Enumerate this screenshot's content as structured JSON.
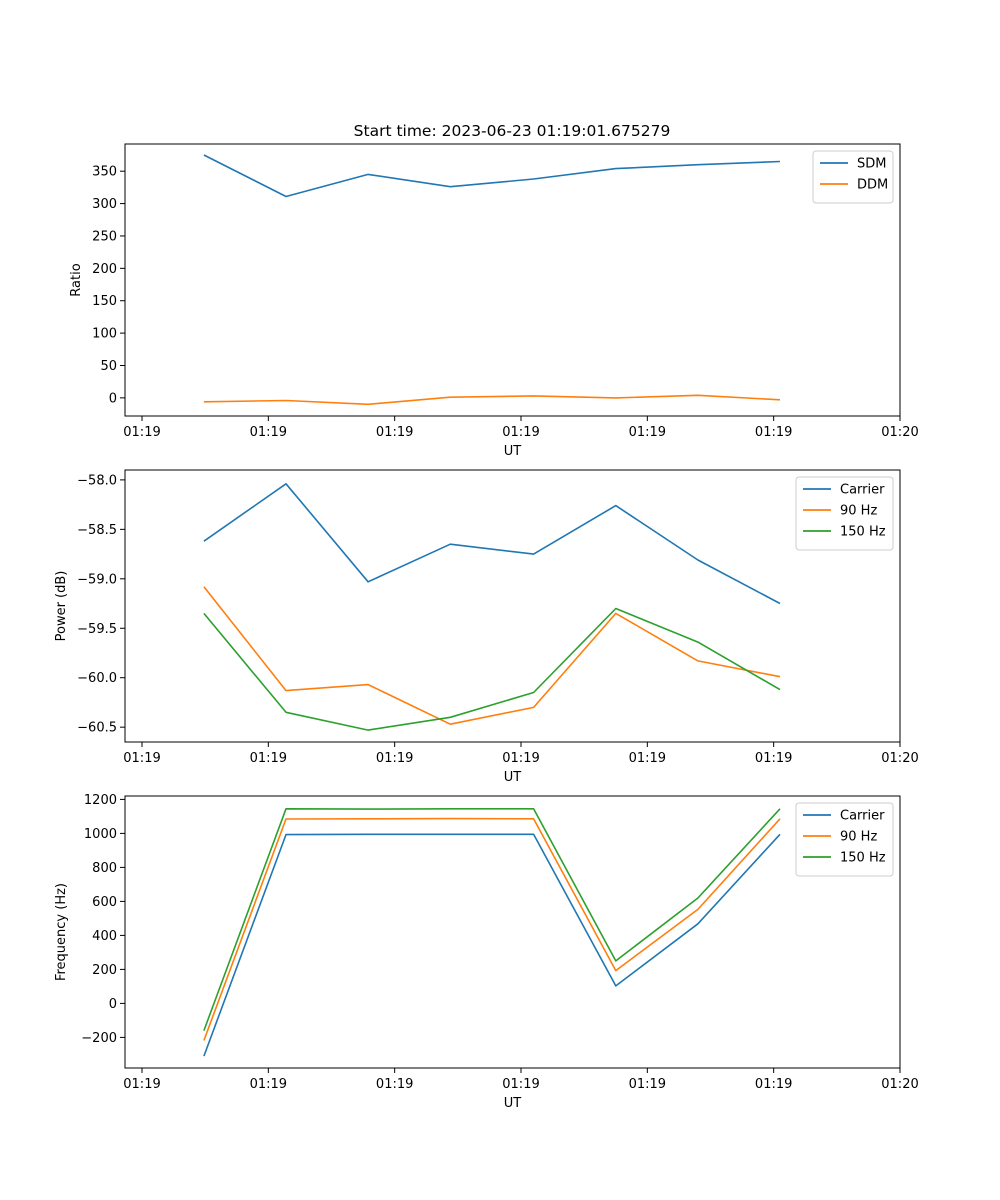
{
  "figure": {
    "title": "Start time: 2023-06-23 01:19:01.675279"
  },
  "chart_data": [
    {
      "type": "line",
      "xlabel": "UT",
      "ylabel": "Ratio",
      "xlim": [
        0,
        6
      ],
      "ylim": [
        -28,
        392
      ],
      "x_ticks": [
        {
          "value": 0,
          "label": "01:19"
        },
        {
          "value": 1,
          "label": "01:19"
        },
        {
          "value": 2,
          "label": "01:19"
        },
        {
          "value": 3,
          "label": "01:19"
        },
        {
          "value": 4,
          "label": "01:19"
        },
        {
          "value": 5,
          "label": "01:19"
        },
        {
          "value": 6,
          "label": "01:20"
        }
      ],
      "y_ticks": [
        0,
        50,
        100,
        150,
        200,
        250,
        300,
        350
      ],
      "x": [
        0.49,
        1.14,
        1.79,
        2.44,
        3.1,
        3.75,
        4.4,
        5.05
      ],
      "series": [
        {
          "name": "SDM",
          "color": "#1f77b4",
          "values": [
            375,
            311,
            345,
            326,
            338,
            354,
            360,
            365
          ]
        },
        {
          "name": "DDM",
          "color": "#ff7f0e",
          "values": [
            -6,
            -4,
            -10,
            1,
            3,
            0,
            4,
            -3
          ]
        }
      ],
      "legend": "upper right",
      "grid": false
    },
    {
      "type": "line",
      "xlabel": "UT",
      "ylabel": "Power (dB)",
      "xlim": [
        0,
        6
      ],
      "ylim": [
        -60.65,
        -57.9
      ],
      "x_ticks": [
        {
          "value": 0,
          "label": "01:19"
        },
        {
          "value": 1,
          "label": "01:19"
        },
        {
          "value": 2,
          "label": "01:19"
        },
        {
          "value": 3,
          "label": "01:19"
        },
        {
          "value": 4,
          "label": "01:19"
        },
        {
          "value": 5,
          "label": "01:19"
        },
        {
          "value": 6,
          "label": "01:20"
        }
      ],
      "y_ticks": [
        -58.0,
        -58.5,
        -59.0,
        -59.5,
        -60.0,
        -60.5
      ],
      "y_tick_labels": [
        "−58.0",
        "−58.5",
        "−59.0",
        "−59.5",
        "−60.0",
        "−60.5"
      ],
      "x": [
        0.49,
        1.14,
        1.79,
        2.44,
        3.1,
        3.75,
        4.4,
        5.05
      ],
      "series": [
        {
          "name": "Carrier",
          "color": "#1f77b4",
          "values": [
            -58.62,
            -58.04,
            -59.03,
            -58.65,
            -58.75,
            -58.26,
            -58.81,
            -59.25
          ]
        },
        {
          "name": "90 Hz",
          "color": "#ff7f0e",
          "values": [
            -59.08,
            -60.13,
            -60.07,
            -60.47,
            -60.3,
            -59.35,
            -59.83,
            -59.99
          ]
        },
        {
          "name": "150 Hz",
          "color": "#2ca02c",
          "values": [
            -59.35,
            -60.35,
            -60.53,
            -60.4,
            -60.15,
            -59.3,
            -59.64,
            -60.12
          ]
        }
      ],
      "legend": "upper right",
      "grid": false
    },
    {
      "type": "line",
      "xlabel": "UT",
      "ylabel": "Frequency (Hz)",
      "xlim": [
        0,
        6
      ],
      "ylim": [
        -380,
        1220
      ],
      "x_ticks": [
        {
          "value": 0,
          "label": "01:19"
        },
        {
          "value": 1,
          "label": "01:19"
        },
        {
          "value": 2,
          "label": "01:19"
        },
        {
          "value": 3,
          "label": "01:19"
        },
        {
          "value": 4,
          "label": "01:19"
        },
        {
          "value": 5,
          "label": "01:19"
        },
        {
          "value": 6,
          "label": "01:20"
        }
      ],
      "y_ticks": [
        -200,
        0,
        200,
        400,
        600,
        800,
        1000,
        1200
      ],
      "y_tick_labels": [
        "−200",
        "0",
        "200",
        "400",
        "600",
        "800",
        "1000",
        "1200"
      ],
      "x": [
        0.49,
        1.14,
        1.79,
        2.44,
        3.1,
        3.75,
        4.4,
        5.05
      ],
      "series": [
        {
          "name": "Carrier",
          "color": "#1f77b4",
          "values": [
            -310,
            993,
            995,
            995,
            995,
            103,
            468,
            995
          ]
        },
        {
          "name": "90 Hz",
          "color": "#ff7f0e",
          "values": [
            -218,
            1085,
            1086,
            1087,
            1086,
            193,
            553,
            1086
          ]
        },
        {
          "name": "150 Hz",
          "color": "#2ca02c",
          "values": [
            -160,
            1145,
            1143,
            1145,
            1145,
            250,
            620,
            1145
          ]
        }
      ],
      "legend": "upper right",
      "grid": false
    }
  ]
}
